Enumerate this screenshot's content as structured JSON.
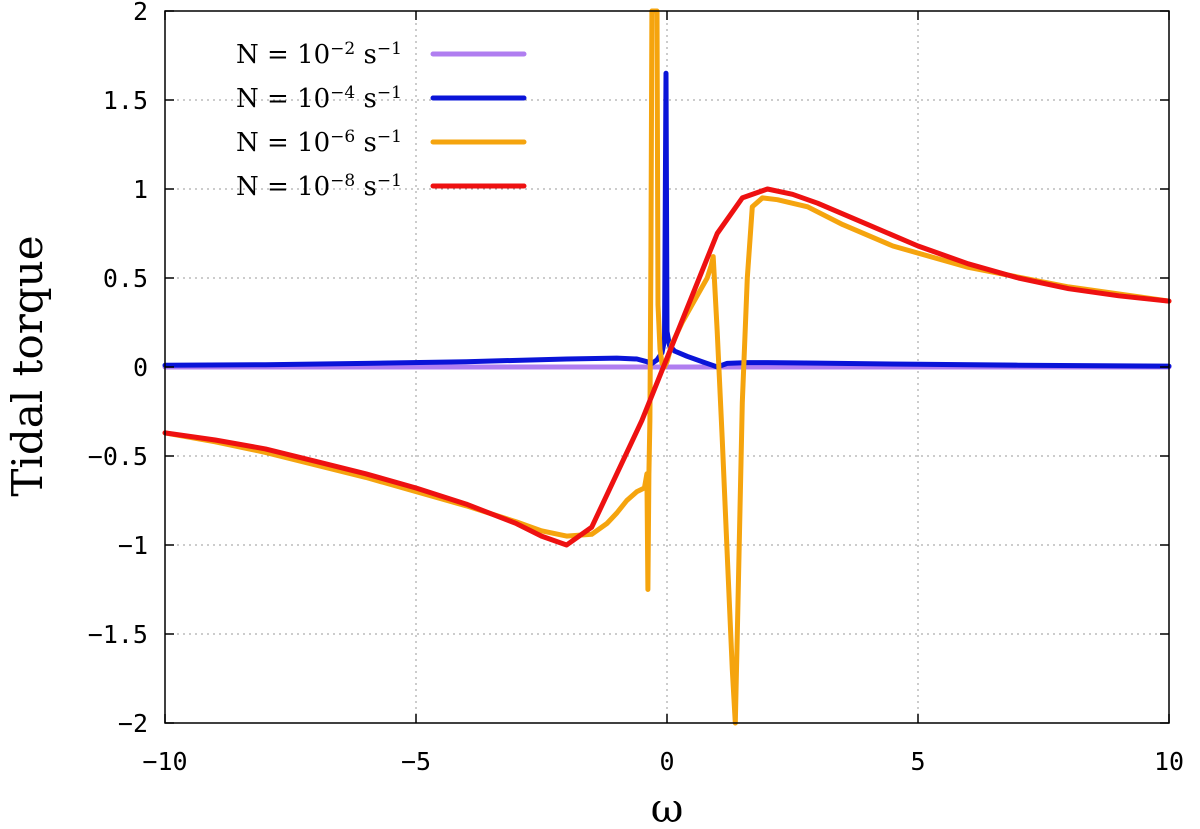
{
  "chart_data": {
    "type": "line",
    "xlabel": "ω",
    "ylabel": "Tidal torque",
    "xlim": [
      -10,
      10
    ],
    "ylim": [
      -2,
      2
    ],
    "xticks": [
      -10,
      -5,
      0,
      5,
      10
    ],
    "xtick_labels": [
      "−10",
      "−5",
      "0",
      "5",
      "10"
    ],
    "yticks": [
      2,
      1.5,
      1,
      0.5,
      0,
      -0.5,
      -1,
      -1.5,
      -2
    ],
    "ytick_labels": [
      "2",
      "1.5",
      "1",
      "0.5",
      "0",
      "−0.5",
      "−1",
      "−1.5",
      "−2"
    ],
    "grid": true,
    "legend_position": "top-left",
    "series": [
      {
        "legend_base": "N = 10",
        "legend_exp": "−2",
        "legend_unit": " s",
        "legend_unit_exp": "−1",
        "color": "#b07ef0",
        "x": [
          -10,
          10
        ],
        "y": [
          0,
          0
        ]
      },
      {
        "legend_base": "N = 10",
        "legend_exp": "−4",
        "legend_unit": " s",
        "legend_unit_exp": "−1",
        "color": "#0a14d8",
        "x": [
          -10,
          -8,
          -6,
          -4,
          -2,
          -1,
          -0.6,
          -0.4,
          -0.3,
          -0.2,
          -0.15,
          -0.1,
          -0.05,
          -0.02,
          0,
          0.05,
          0.15,
          0.4,
          0.7,
          0.9,
          1.0,
          1.2,
          1.6,
          2,
          3,
          5,
          7,
          10
        ],
        "y": [
          0.01,
          0.013,
          0.02,
          0.03,
          0.045,
          0.05,
          0.045,
          0.03,
          0.02,
          0.04,
          0.06,
          0.08,
          0.15,
          1.65,
          0.2,
          0.12,
          0.09,
          0.06,
          0.03,
          0.01,
          0.0,
          0.02,
          0.025,
          0.025,
          0.022,
          0.015,
          0.01,
          0.005
        ]
      },
      {
        "legend_base": "N = 10",
        "legend_exp": "−6",
        "legend_unit": " s",
        "legend_unit_exp": "−1",
        "color": "#f5a40e",
        "x": [
          -10,
          -9,
          -8,
          -7,
          -6,
          -5,
          -4,
          -3,
          -2.5,
          -2,
          -1.5,
          -1.2,
          -1.0,
          -0.8,
          -0.6,
          -0.45,
          -0.4,
          -0.38,
          -0.36,
          -0.34,
          -0.32,
          -0.3,
          -0.28,
          -0.25,
          -0.2,
          -0.18,
          -0.14,
          -0.1,
          -0.05,
          0.0,
          0.1,
          0.3,
          0.6,
          0.8,
          0.88,
          0.92,
          1.0,
          1.1,
          1.2,
          1.3,
          1.36,
          1.4,
          1.5,
          1.6,
          1.7,
          1.9,
          2.2,
          2.8,
          3.5,
          4.5,
          6,
          8,
          10
        ],
        "y": [
          -0.37,
          -0.42,
          -0.48,
          -0.55,
          -0.62,
          -0.7,
          -0.78,
          -0.87,
          -0.92,
          -0.95,
          -0.94,
          -0.88,
          -0.82,
          -0.75,
          -0.7,
          -0.68,
          -0.6,
          -1.25,
          -0.6,
          -0.3,
          0.6,
          2.0,
          2.0,
          2.0,
          2.0,
          0.35,
          0.1,
          0.02,
          0.0,
          0.03,
          0.13,
          0.25,
          0.4,
          0.5,
          0.57,
          0.62,
          0.2,
          -0.4,
          -1.05,
          -1.7,
          -2.0,
          -1.5,
          -0.2,
          0.5,
          0.9,
          0.95,
          0.94,
          0.9,
          0.8,
          0.68,
          0.56,
          0.45,
          0.37
        ]
      },
      {
        "legend_base": "N = 10",
        "legend_exp": "−8",
        "legend_unit": " s",
        "legend_unit_exp": "−1",
        "color": "#ee1111",
        "x": [
          -10,
          -9,
          -8,
          -7,
          -6,
          -5,
          -4,
          -3,
          -2.5,
          -2,
          -1.5,
          -1,
          -0.5,
          0,
          0.5,
          1,
          1.5,
          2,
          2.5,
          3,
          4,
          5,
          6,
          7,
          8,
          9,
          10
        ],
        "y": [
          -0.37,
          -0.41,
          -0.46,
          -0.53,
          -0.6,
          -0.68,
          -0.77,
          -0.88,
          -0.95,
          -1.0,
          -0.9,
          -0.6,
          -0.3,
          0.05,
          0.4,
          0.75,
          0.95,
          1.0,
          0.97,
          0.92,
          0.8,
          0.68,
          0.58,
          0.5,
          0.44,
          0.4,
          0.37
        ]
      }
    ]
  }
}
